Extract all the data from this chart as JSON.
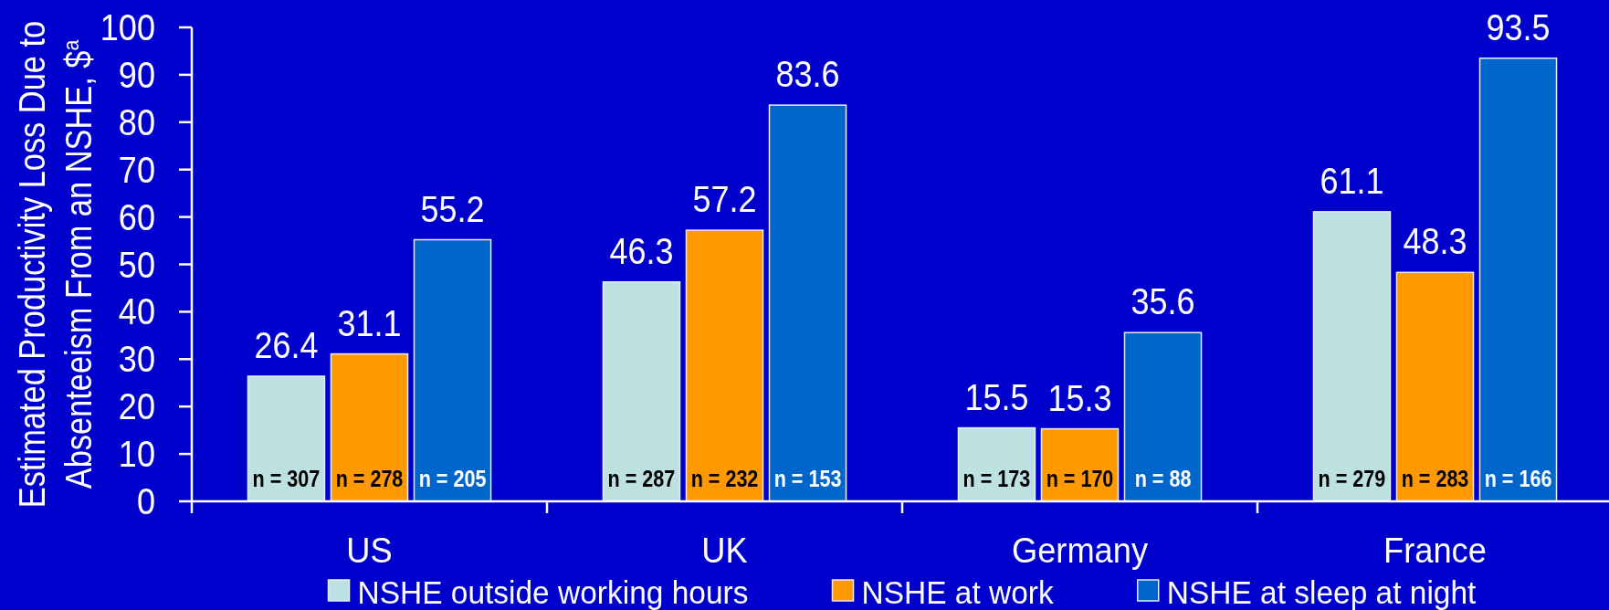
{
  "chart_data": {
    "type": "bar",
    "ylabel": "Estimated Productivity Loss Due to Absenteeism From an NSHE, $$^{a}$",
    "categories": [
      "US",
      "UK",
      "Germany",
      "France"
    ],
    "series": [
      {
        "name": "NSHE outside working hours",
        "color": "#bde0e0",
        "values": [
          26.4,
          46.3,
          15.5,
          61.1
        ]
      },
      {
        "name": "NSHE at work",
        "color": "#ff9900",
        "values": [
          31.1,
          57.2,
          15.3,
          48.3
        ]
      },
      {
        "name": "NSHE at sleep at night",
        "color": "#0066cc",
        "values": [
          55.2,
          83.6,
          35.6,
          93.5
        ]
      }
    ],
    "ylim": [
      0,
      100
    ],
    "yticks": [
      0,
      10,
      20,
      30,
      40,
      50,
      60,
      70,
      80,
      90,
      100
    ],
    "data_labels": true,
    "legend": "bottom",
    "annotations": [
      {
        "text": "n = 307",
        "x": "US",
        "y": 0
      },
      {
        "text": "n = 278",
        "x": "US",
        "y": 0
      },
      {
        "text": "n = 205",
        "x": "US",
        "y": 0
      },
      {
        "text": "n = 287",
        "x": "UK",
        "y": 0
      },
      {
        "text": "n = 232",
        "x": "UK",
        "y": 0
      },
      {
        "text": "n = 153",
        "x": "UK",
        "y": 0
      },
      {
        "text": "n = 173",
        "x": "Germany",
        "y": 0
      },
      {
        "text": "n = 170",
        "x": "Germany",
        "y": 0
      },
      {
        "text": "n = 88",
        "x": "Germany",
        "y": 0
      },
      {
        "text": "n = 279",
        "x": "France",
        "y": 0
      },
      {
        "text": "n = 283",
        "x": "France",
        "y": 0
      },
      {
        "text": "n = 166",
        "x": "France",
        "y": 0
      }
    ]
  }
}
